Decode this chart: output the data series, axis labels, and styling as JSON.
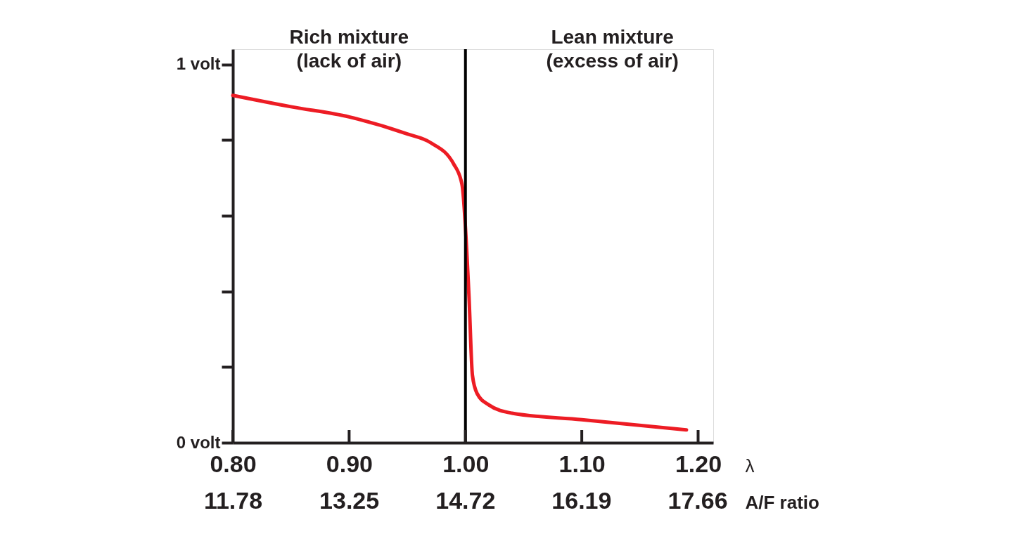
{
  "chart_data": {
    "type": "line",
    "x": [
      0.8,
      0.85,
      0.9,
      0.95,
      0.97,
      0.99,
      0.997,
      1.003,
      1.006,
      1.01,
      1.02,
      1.04,
      1.1,
      1.19
    ],
    "series": [
      {
        "color": "#ed1c24",
        "values": [
          0.918,
          0.888,
          0.861,
          0.816,
          0.793,
          0.736,
          0.683,
          0.389,
          0.178,
          0.13,
          0.1,
          0.078,
          0.061,
          0.034
        ]
      }
    ],
    "xlim": [
      0.8,
      1.213
    ],
    "xticks": [
      {
        "value": 0.8,
        "label": "0.80"
      },
      {
        "value": 0.9,
        "label": "0.90"
      },
      {
        "value": 1.0,
        "label": "1.00"
      },
      {
        "value": 1.1,
        "label": "1.10"
      },
      {
        "value": 1.2,
        "label": "1.20"
      }
    ],
    "xlabel": "λ",
    "x2lim": [
      11.78,
      17.86
    ],
    "x2ticks": [
      11.78,
      13.25,
      14.72,
      16.19,
      17.66
    ],
    "x2label": "A/F ratio",
    "ylim": [
      0,
      1.04
    ],
    "yticks": [
      {
        "value": 0,
        "label": "0 volt"
      },
      {
        "value": 0.2,
        "label": null
      },
      {
        "value": 0.4,
        "label": null
      },
      {
        "value": 0.6,
        "label": null
      },
      {
        "value": 0.8,
        "label": null
      },
      {
        "value": 1.0,
        "label": "1 volt"
      }
    ],
    "ref_lines": [
      {
        "axis": "x",
        "value": 1.0,
        "color": "#000000"
      }
    ],
    "annotations": [
      "Rich mixture\n(lack of air)",
      "Lean mixture\n(excess of air)"
    ],
    "grid": false,
    "marker": "none",
    "line_style": "solid"
  }
}
